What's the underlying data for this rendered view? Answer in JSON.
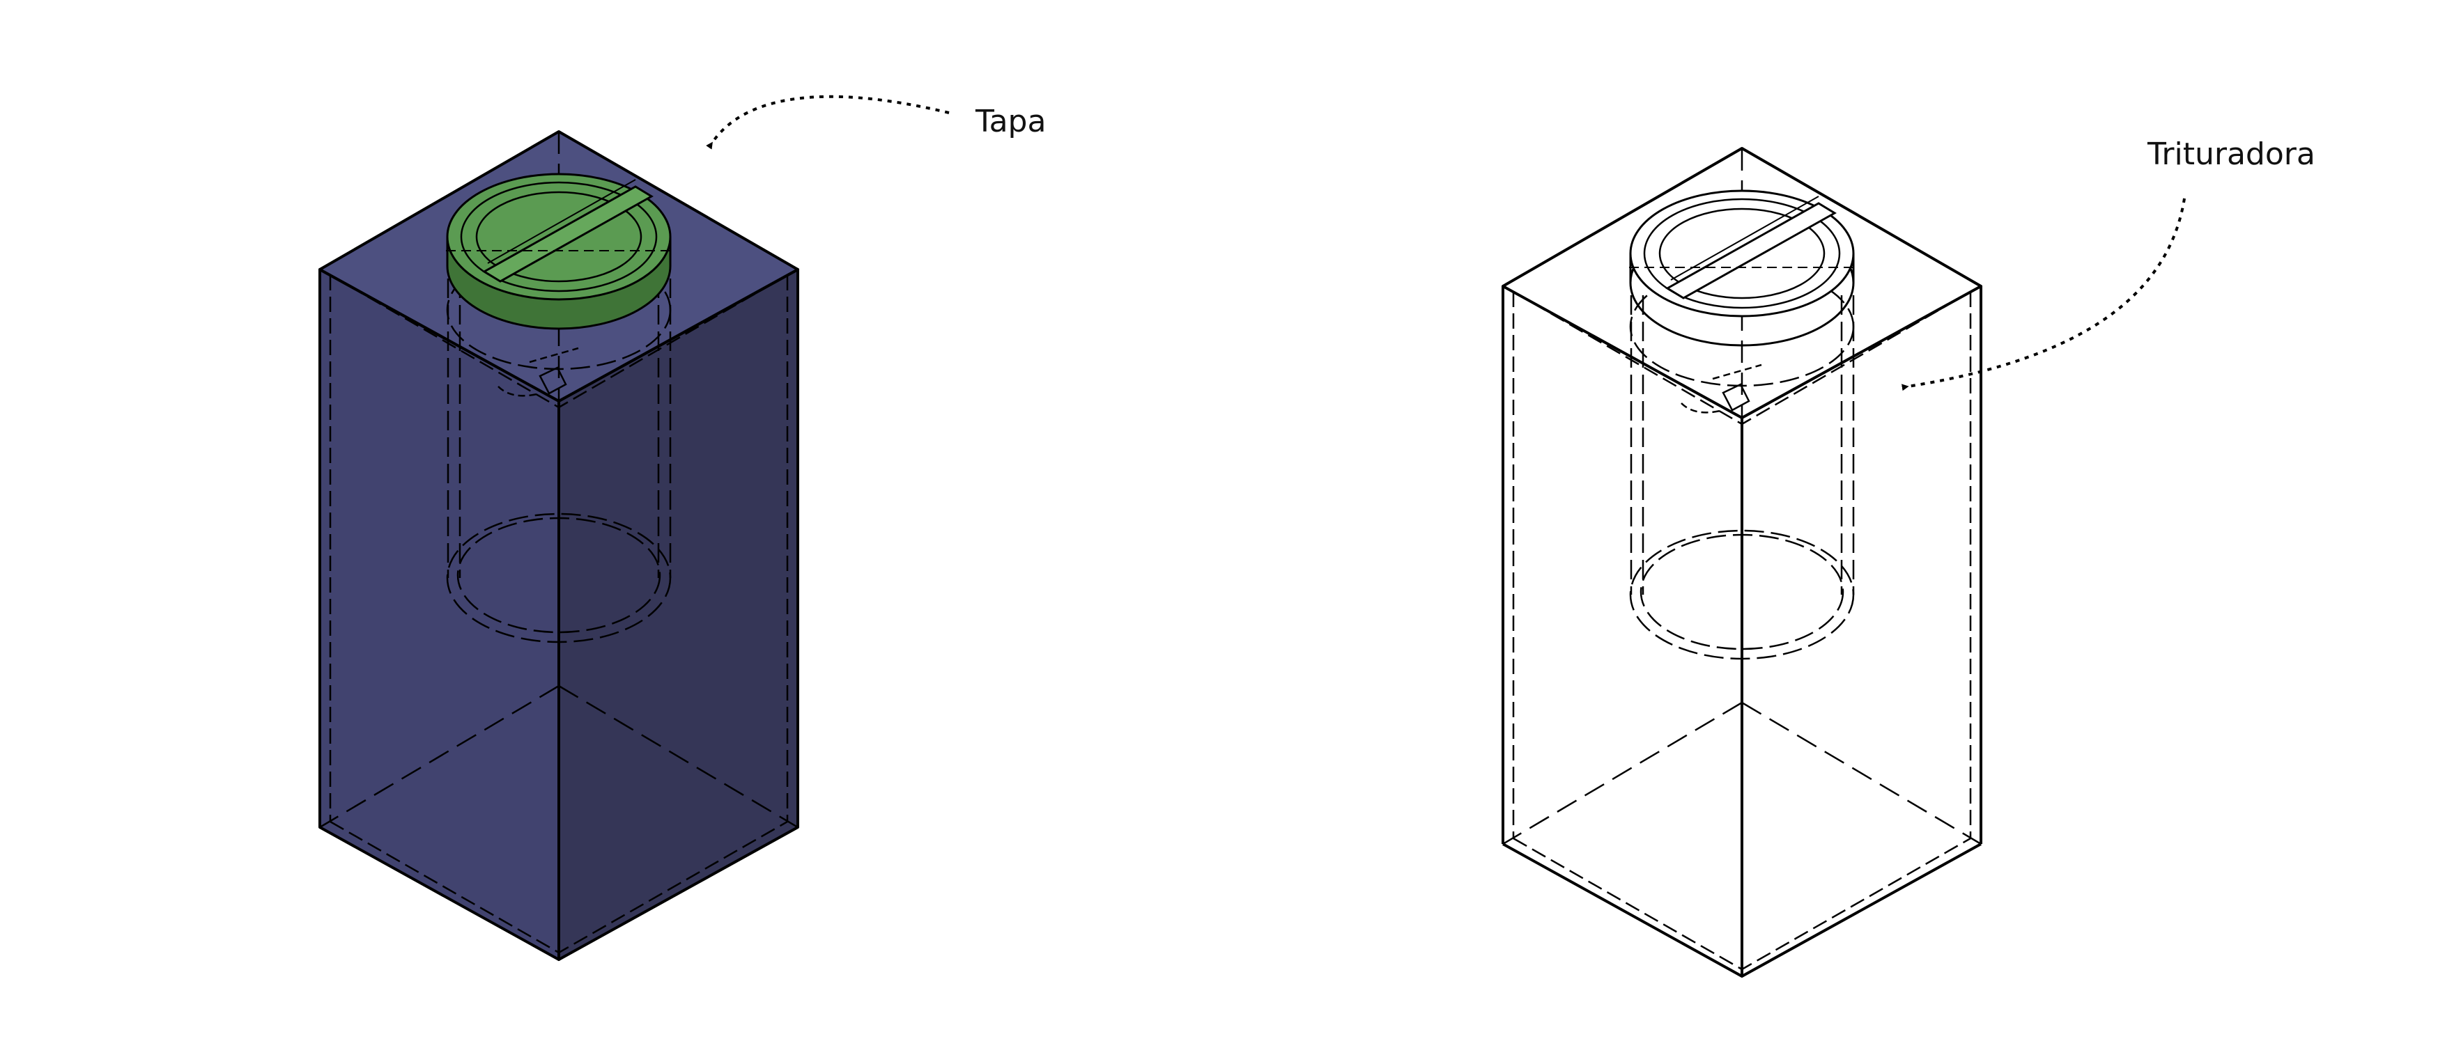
{
  "labels": {
    "left": "Tapa",
    "right": "Trituradora"
  },
  "colors": {
    "box_fill": "#3b3d6a",
    "lid_fill": "#4e8a45",
    "outline": "#000000",
    "background": "#ffffff"
  }
}
